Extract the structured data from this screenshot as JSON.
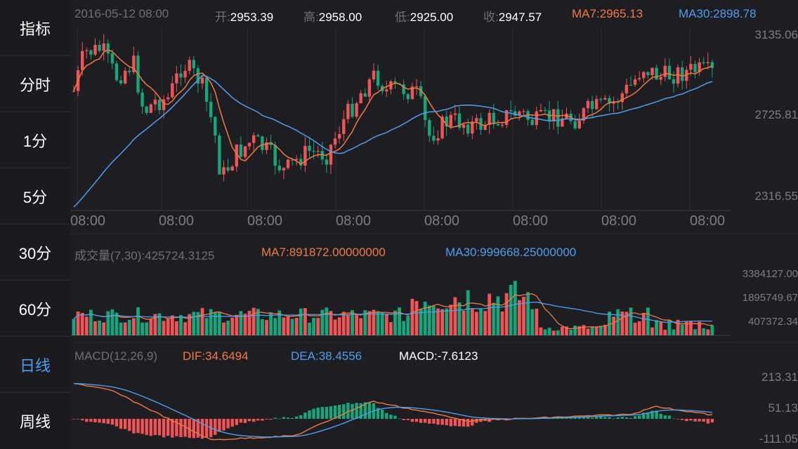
{
  "sidebar": {
    "items": [
      {
        "label": "指标",
        "active": false
      },
      {
        "label": "分时",
        "active": false
      },
      {
        "label": "1分",
        "active": false
      },
      {
        "label": "5分",
        "active": false
      },
      {
        "label": "30分",
        "active": false
      },
      {
        "label": "60分",
        "active": false
      },
      {
        "label": "日线",
        "active": true
      },
      {
        "label": "周线",
        "active": false
      }
    ]
  },
  "colors": {
    "up": "#f05456",
    "down": "#16a679",
    "ma7": "#f07a42",
    "ma30": "#4f9eee",
    "accent": "#4a9ff5"
  },
  "header": {
    "date": "2016-05-12 08:00",
    "open_label": "开:",
    "open": "2953.39",
    "high_label": "高:",
    "high": "2958.00",
    "low_label": "低:",
    "low": "2925.00",
    "close_label": "收:",
    "close": "2947.57",
    "ma7_label": "MA7:",
    "ma7": "2965.13",
    "ma30_label": "MA30:",
    "ma30": "2898.78"
  },
  "volume_header": {
    "label": "成交量(7,30):",
    "value": "425724.3125",
    "ma7_label": "MA7:",
    "ma7": "891872.00000000",
    "ma30_label": "MA30:",
    "ma30": "999668.25000000"
  },
  "macd_header": {
    "label": "MACD(12,26,9)",
    "dif_label": "DIF:",
    "dif": "34.6494",
    "dea_label": "DEA:",
    "dea": "38.4556",
    "macd_label": "MACD:",
    "macd": "-7.6123"
  },
  "chart_data": [
    {
      "type": "candlestick",
      "title": "",
      "y_ticks": [
        "3135.06",
        "2725.81",
        "2316.55"
      ],
      "ylim": [
        2316.55,
        3135.06
      ],
      "x_tick_labels": [
        "08:00",
        "08:00",
        "08:00",
        "08:00",
        "08:00",
        "08:00",
        "08:00",
        "08:00"
      ],
      "series": [
        {
          "name": "MA7"
        },
        {
          "name": "MA30"
        }
      ],
      "latest": {
        "open": 2953.39,
        "high": 2958.0,
        "low": 2925.0,
        "close": 2947.57
      }
    },
    {
      "type": "bar",
      "title": "成交量(7,30)",
      "y_ticks": [
        "3384127.00",
        "1895749.67",
        "407372.34"
      ],
      "series": [
        {
          "name": "MA7"
        },
        {
          "name": "MA30"
        }
      ]
    },
    {
      "type": "bar",
      "title": "MACD(12,26,9)",
      "y_ticks": [
        "213.31",
        "51.13",
        "-111.05"
      ],
      "series": [
        {
          "name": "DIF"
        },
        {
          "name": "DEA"
        },
        {
          "name": "MACD"
        }
      ]
    }
  ]
}
